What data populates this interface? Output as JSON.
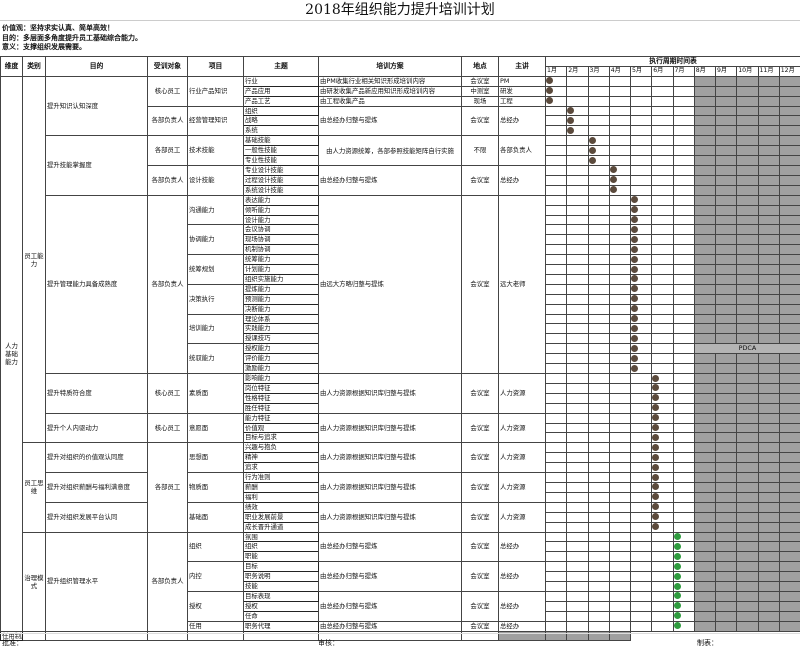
{
  "title": "2018年组织能力提升培训计划",
  "intro": [
    "价值观：坚持求实认真、简单高效！",
    "目的：多层面多角度提升员工基础综合能力。",
    "意义：支撑组织发展需要。"
  ],
  "headers": {
    "dimension": "维度",
    "category": "类别",
    "purpose": "目的",
    "trainee": "受训对象",
    "project": "项目",
    "theme": "主题",
    "plan": "培训方案",
    "location": "地点",
    "lecturer": "主讲",
    "schedule": "执行周期时间表"
  },
  "months": [
    "1月",
    "2月",
    "3月",
    "4月",
    "5月",
    "6月",
    "7月",
    "8月",
    "9月",
    "10月",
    "11月",
    "12月"
  ],
  "colors": {
    "dot_brown": "#5b4a3c",
    "dot_green": "#2e9b3e",
    "future_gray": "#a0a0a0"
  },
  "elapsed_months": 7,
  "pdca_label": "PDCA",
  "dimension": [
    {
      "text": "人力基础能力",
      "span": 56
    }
  ],
  "category": [
    {
      "text": "员工能力",
      "span": 37
    },
    {
      "text": "员工思维",
      "span": 9
    },
    {
      "text": "治理模式",
      "span": 10
    }
  ],
  "purpose": [
    {
      "text": "提升知识认知深度",
      "span": 6
    },
    {
      "text": "提升技能掌握度",
      "span": 6
    },
    {
      "text": "提升管理能力具备成熟度",
      "span": 18
    },
    {
      "text": "提升特质符合度",
      "span": 4
    },
    {
      "text": "提升个人内驱动力",
      "span": 3
    },
    {
      "text": "提升对组织的价值观认同度",
      "span": 3
    },
    {
      "text": "提升对组织薪酬与福利满意度",
      "span": 3
    },
    {
      "text": "提升对组织发展平台认同",
      "span": 3
    },
    {
      "text": "提升组织管理水平",
      "span": 10
    }
  ],
  "trainee": [
    {
      "text": "核心员工",
      "span": 3
    },
    {
      "text": "各部负责人",
      "span": 3
    },
    {
      "text": "各部员工",
      "span": 3
    },
    {
      "text": "各部负责人",
      "span": 3
    },
    {
      "text": "各部负责人",
      "span": 18
    },
    {
      "text": "核心员工",
      "span": 4
    },
    {
      "text": "核心员工",
      "span": 3
    },
    {
      "text": "各部员工",
      "span": 9
    },
    {
      "text": "各部负责人",
      "span": 10
    }
  ],
  "project": [
    {
      "text": "行业产品知识",
      "span": 3,
      "month": 1
    },
    {
      "text": "经营管理知识",
      "span": 3,
      "month": 2
    },
    {
      "text": "技术技能",
      "span": 3,
      "month": 3
    },
    {
      "text": "设计技能",
      "span": 3,
      "month": 4
    },
    {
      "text": "沟通能力",
      "span": 3,
      "month": 5
    },
    {
      "text": "协调能力",
      "span": 3,
      "month": 5
    },
    {
      "text": "统筹规划",
      "span": 3,
      "month": 5
    },
    {
      "text": "决策执行",
      "span": 3,
      "month": 5
    },
    {
      "text": "培训能力",
      "span": 3,
      "month": 5
    },
    {
      "text": "统驭能力",
      "span": 3,
      "month": 5
    },
    {
      "text": "素质面",
      "span": 4,
      "month": 6
    },
    {
      "text": "意愿面",
      "span": 3,
      "month": 6
    },
    {
      "text": "思想面",
      "span": 3,
      "month": 6
    },
    {
      "text": "物质面",
      "span": 3,
      "month": 6
    },
    {
      "text": "基础面",
      "span": 3,
      "month": 6
    },
    {
      "text": "组织",
      "span": 3,
      "month": 7
    },
    {
      "text": "内控",
      "span": 3,
      "month": 7
    },
    {
      "text": "授权",
      "span": 3,
      "month": 7
    },
    {
      "text": "任用",
      "span": 1,
      "month": 7
    }
  ],
  "themes": [
    "行业",
    "产品应用",
    "产品工艺",
    "组织",
    "战略",
    "系统",
    "基础技能",
    "一般性技能",
    "专业性技能",
    "专业设计技能",
    "过程设计技能",
    "系统设计技能",
    "表达能力",
    "倾听能力",
    "设计能力",
    "会议协调",
    "现场协调",
    "机制协调",
    "统筹能力",
    "计划能力",
    "组织实施能力",
    "提炼能力",
    "预测能力",
    "决断能力",
    "理论体系",
    "实践能力",
    "授课技巧",
    "授权能力",
    "评价能力",
    "激励能力",
    "影响能力",
    "岗位特征",
    "性格特征",
    "胜任特征",
    "能力特征",
    "价值观",
    "目标与追求",
    "兴趣与抱负",
    "精神",
    "追求",
    "行为准则",
    "薪酬",
    "福利",
    "绩效",
    "职业发展前景",
    "成长晋升通道",
    "氛围",
    "组织",
    "职能",
    "目标",
    "职务说明",
    "技能",
    "目标表现",
    "授权",
    "任命",
    "职务代理",
    "任用制度"
  ],
  "plan": [
    {
      "text": "由PM收集行业相关知识形成培训内容",
      "span": 1,
      "location": "会议室",
      "lecturer": "PM"
    },
    {
      "text": "由研发收集产品新应用知识形成培训内容",
      "span": 1,
      "location": "中测室",
      "lecturer": "研发"
    },
    {
      "text": "由工程收集产品",
      "span": 1,
      "location": "现场",
      "lecturer": "工程"
    },
    {
      "text": "由总经办归整与提炼",
      "span": 3,
      "location": "会议室",
      "lecturer": "总经办"
    },
    {
      "text": "由人力资源统筹，各部参照技能矩阵自行实施",
      "span": 3,
      "location": "不限",
      "lecturer": "各部负责人"
    },
    {
      "text": "由总经办归整与提炼",
      "span": 3,
      "location": "会议室",
      "lecturer": "总经办"
    },
    {
      "text": "由远大方略归整与提炼",
      "span": 18,
      "location": "会议室",
      "lecturer": "远大老师"
    },
    {
      "text": "由人力资源根据知识库归整与提炼",
      "span": 4,
      "location": "会议室",
      "lecturer": "人力资源"
    },
    {
      "text": "由人力资源根据知识库归整与提炼",
      "span": 3,
      "location": "会议室",
      "lecturer": "人力资源"
    },
    {
      "text": "由人力资源根据知识库归整与提炼",
      "span": 3,
      "location": "会议室",
      "lecturer": "人力资源"
    },
    {
      "text": "由人力资源根据知识库归整与提炼",
      "span": 3,
      "location": "会议室",
      "lecturer": "人力资源"
    },
    {
      "text": "由人力资源根据知识库归整与提炼",
      "span": 3,
      "location": "会议室",
      "lecturer": "人力资源"
    },
    {
      "text": "由总经办归整与提炼",
      "span": 3,
      "location": "会议室",
      "lecturer": "总经办"
    },
    {
      "text": "由总经办归整与提炼",
      "span": 3,
      "location": "会议室",
      "lecturer": "总经办"
    },
    {
      "text": "由总经办归整与提炼",
      "span": 3,
      "location": "会议室",
      "lecturer": "总经办"
    },
    {
      "text": "由总经办归整与提炼",
      "span": 1,
      "location": "会议室",
      "lecturer": "总经办"
    }
  ],
  "footer": {
    "approve": "批准：",
    "review": "审核：",
    "prepared": "制表："
  }
}
